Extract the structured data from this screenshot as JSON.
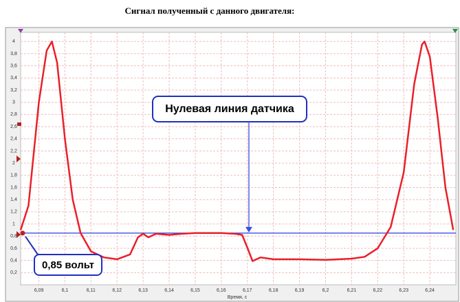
{
  "chart_data": {
    "type": "line",
    "title": "Сигнал полученный с данного двигателя:",
    "x_label": "Время, с",
    "x": [
      6.083,
      6.086,
      6.09,
      6.093,
      6.095,
      6.097,
      6.1,
      6.103,
      6.106,
      6.11,
      6.115,
      6.12,
      6.125,
      6.128,
      6.13,
      6.132,
      6.135,
      6.14,
      6.145,
      6.15,
      6.155,
      6.16,
      6.165,
      6.168,
      6.17,
      6.172,
      6.175,
      6.18,
      6.19,
      6.2,
      6.21,
      6.215,
      6.22,
      6.225,
      6.23,
      6.234,
      6.237,
      6.238,
      6.24,
      6.243,
      6.246,
      6.249
    ],
    "series": [
      {
        "color": "#e8202a",
        "values": [
          0.9,
          1.3,
          3.0,
          3.85,
          4.0,
          3.65,
          2.4,
          1.4,
          0.85,
          0.55,
          0.45,
          0.42,
          0.5,
          0.78,
          0.84,
          0.78,
          0.84,
          0.82,
          0.84,
          0.85,
          0.85,
          0.85,
          0.84,
          0.82,
          0.61,
          0.39,
          0.45,
          0.42,
          0.42,
          0.41,
          0.43,
          0.46,
          0.6,
          0.95,
          1.85,
          3.3,
          3.95,
          4.0,
          3.75,
          2.75,
          1.6,
          0.9
        ]
      }
    ],
    "reference_line": {
      "value": 0.85,
      "color": "#3a4fe0"
    },
    "annotations": [
      "Нулевая линия датчика",
      "0,85 вольт"
    ],
    "xlim": [
      6.083,
      6.25
    ],
    "ylim": [
      0,
      4.15
    ],
    "xticks": [
      {
        "value": 6.09,
        "label": "6,09"
      },
      {
        "value": 6.1,
        "label": "6,1"
      },
      {
        "value": 6.11,
        "label": "6,11"
      },
      {
        "value": 6.12,
        "label": "6,12"
      },
      {
        "value": 6.13,
        "label": "6,13"
      },
      {
        "value": 6.14,
        "label": "6,14"
      },
      {
        "value": 6.15,
        "label": "6,15"
      },
      {
        "value": 6.16,
        "label": "6,16"
      },
      {
        "value": 6.17,
        "label": "6,17"
      },
      {
        "value": 6.18,
        "label": "6,18"
      },
      {
        "value": 6.19,
        "label": "6,19"
      },
      {
        "value": 6.2,
        "label": "6,2"
      },
      {
        "value": 6.21,
        "label": "6,21"
      },
      {
        "value": 6.22,
        "label": "6,22"
      },
      {
        "value": 6.23,
        "label": "6,23"
      },
      {
        "value": 6.24,
        "label": "6,24"
      }
    ],
    "yticks": [
      {
        "value": 0.2,
        "label": "0,2"
      },
      {
        "value": 0.4,
        "label": "0,4"
      },
      {
        "value": 0.6,
        "label": "0,6"
      },
      {
        "value": 0.8,
        "label": "0,8"
      },
      1,
      {
        "value": 1.2,
        "label": "1,2"
      },
      {
        "value": 1.4,
        "label": "1,4"
      },
      {
        "value": 1.6,
        "label": "1,6"
      },
      {
        "value": 1.8,
        "label": "1,8"
      },
      2,
      {
        "value": 2.2,
        "label": "2,2"
      },
      {
        "value": 2.4,
        "label": "2,4"
      },
      {
        "value": 2.6,
        "label": "2,6"
      },
      {
        "value": 2.8,
        "label": "2,8"
      },
      3,
      {
        "value": 3.2,
        "label": "3,2"
      },
      {
        "value": 3.4,
        "label": "3,4"
      },
      {
        "value": 3.6,
        "label": "3,6"
      },
      {
        "value": 3.8,
        "label": "3,8"
      },
      4
    ],
    "grid": true
  }
}
